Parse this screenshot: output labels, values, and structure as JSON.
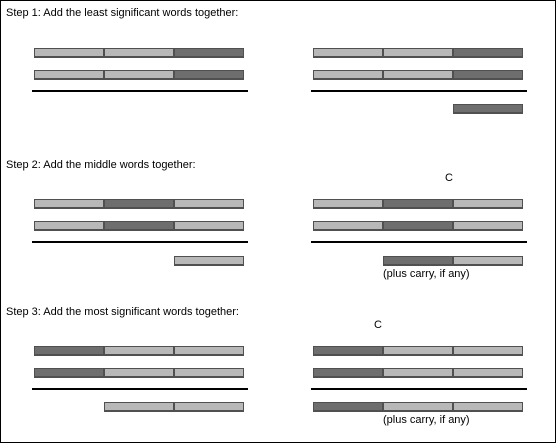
{
  "colors": {
    "light_word": "#b8b8b8",
    "dark_word": "#6e6e6e",
    "divider": "#000000",
    "word_border": "#505050"
  },
  "steps": [
    {
      "title": "Step 1: Add the least significant words together:",
      "carry_label": "",
      "note": "",
      "left": {
        "rows": [
          [
            "light",
            "light",
            "dark"
          ],
          [
            "light",
            "light",
            "dark"
          ]
        ],
        "result": [
          null,
          null,
          null
        ]
      },
      "right": {
        "rows": [
          [
            "light",
            "light",
            "dark"
          ],
          [
            "light",
            "light",
            "dark"
          ]
        ],
        "result": [
          null,
          null,
          "dark"
        ]
      }
    },
    {
      "title": "Step 2: Add the middle words together:",
      "carry_label": "C",
      "note": "(plus carry, if any)",
      "left": {
        "rows": [
          [
            "light",
            "dark",
            "light"
          ],
          [
            "light",
            "dark",
            "light"
          ]
        ],
        "result": [
          null,
          null,
          "light"
        ]
      },
      "right": {
        "rows": [
          [
            "light",
            "dark",
            "light"
          ],
          [
            "light",
            "dark",
            "light"
          ]
        ],
        "result": [
          null,
          "dark",
          "light"
        ]
      }
    },
    {
      "title": "Step 3: Add the most significant words together:",
      "carry_label": "C",
      "note": "(plus carry, if any)",
      "left": {
        "rows": [
          [
            "dark",
            "light",
            "light"
          ],
          [
            "dark",
            "light",
            "light"
          ]
        ],
        "result": [
          null,
          "light",
          "light"
        ]
      },
      "right": {
        "rows": [
          [
            "dark",
            "light",
            "light"
          ],
          [
            "dark",
            "light",
            "light"
          ]
        ],
        "result": [
          "dark",
          "light",
          "light"
        ]
      }
    }
  ]
}
